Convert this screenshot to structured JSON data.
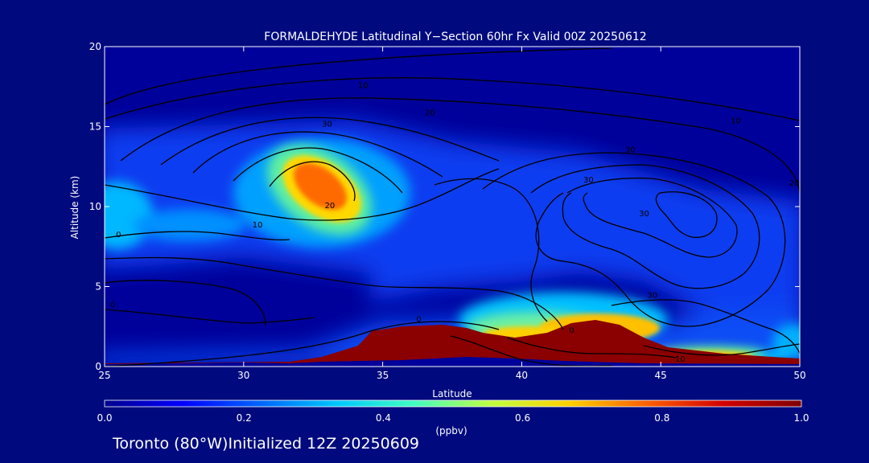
{
  "chart_data": {
    "type": "heatmap",
    "title": "FORMALDEHYDE Latitudinal Y−Section 60hr  Fx Valid 00Z 20250612",
    "xlabel": "Latitude",
    "ylabel": "Altitude (km)",
    "xlim": [
      25,
      50
    ],
    "ylim": [
      0,
      20
    ],
    "x_ticks": [
      "25",
      "30",
      "35",
      "40",
      "45",
      "50"
    ],
    "y_ticks": [
      "0",
      "5",
      "10",
      "15",
      "20"
    ],
    "colorbar": {
      "label": "(ppbv)",
      "min": 0.0,
      "max": 1.0,
      "ticks": [
        "0.0",
        "0.2",
        "0.4",
        "0.6",
        "0.8",
        "1.0"
      ]
    },
    "colormap": [
      "#00008b",
      "#0000ff",
      "#0064ff",
      "#00c8ff",
      "#40ffc0",
      "#c0ff40",
      "#ffd000",
      "#ff6000",
      "#d00000",
      "#800000"
    ],
    "contour_labels": [
      {
        "text": "10",
        "lat": 34.3,
        "alt": 17.4
      },
      {
        "text": "20",
        "lat": 36.7,
        "alt": 15.7
      },
      {
        "text": "30",
        "lat": 33.0,
        "alt": 15.0
      },
      {
        "text": "20",
        "lat": 33.1,
        "alt": 9.9
      },
      {
        "text": "10",
        "lat": 30.5,
        "alt": 8.7
      },
      {
        "text": "0",
        "lat": 25.5,
        "alt": 8.1
      },
      {
        "text": "0",
        "lat": 25.3,
        "alt": 3.7
      },
      {
        "text": "0",
        "lat": 36.3,
        "alt": 2.8
      },
      {
        "text": "10",
        "lat": 47.7,
        "alt": 15.2
      },
      {
        "text": "30",
        "lat": 43.9,
        "alt": 13.4
      },
      {
        "text": "30",
        "lat": 42.4,
        "alt": 11.5
      },
      {
        "text": "30",
        "lat": 44.4,
        "alt": 9.4
      },
      {
        "text": "30",
        "lat": 44.7,
        "alt": 4.3
      },
      {
        "text": "20",
        "lat": 49.8,
        "alt": 11.3
      },
      {
        "text": "0",
        "lat": 41.8,
        "alt": 2.1
      },
      {
        "text": "10",
        "lat": 45.7,
        "alt": 0.3
      }
    ]
  },
  "footer": {
    "location": "Toronto (80°W)Initialized 12Z 20250609"
  }
}
